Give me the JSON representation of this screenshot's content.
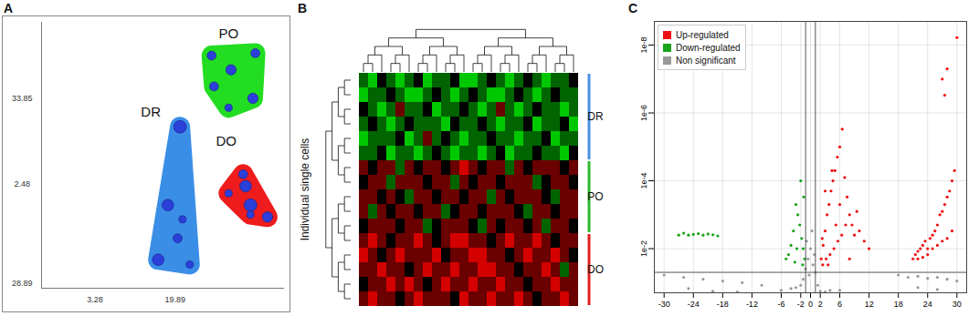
{
  "chart_data": [
    {
      "panel_label": "A",
      "type": "bubble",
      "color": "#2b3fd9",
      "tick_labels": false,
      "xlim": [
        0,
        100
      ],
      "ylim": [
        0,
        112
      ],
      "series": [
        {
          "name": "DR",
          "color": "#3a8ee6",
          "label_x": 45,
          "label_y": 74,
          "x": [
            57,
            52,
            58,
            48,
            61,
            56
          ],
          "y": [
            68,
            35,
            29,
            12,
            10,
            21
          ],
          "sizes": [
            3,
            2.5,
            1,
            2.5,
            1,
            1.5
          ]
        },
        {
          "name": "PO",
          "color": "#22dd22",
          "label_x": 77,
          "label_y": 107,
          "x": [
            70,
            78,
            88,
            87,
            77,
            71
          ],
          "y": [
            98,
            92,
            99,
            80,
            76,
            85
          ],
          "sizes": [
            1.5,
            2,
            1.5,
            2,
            1,
            1.5
          ]
        },
        {
          "name": "DO",
          "color": "#ee1c1c",
          "label_x": 76,
          "label_y": 62,
          "x": [
            83,
            84,
            86,
            93,
            77,
            86
          ],
          "y": [
            48,
            43,
            35,
            30,
            40,
            31
          ],
          "sizes": [
            1.5,
            2.5,
            3,
            2,
            1,
            1
          ]
        }
      ],
      "annotations": [
        {
          "text": "33.85",
          "x": -8,
          "y": 80
        },
        {
          "text": "2.48",
          "x": -8,
          "y": 44
        },
        {
          "text": "28.89",
          "x": -8,
          "y": 2
        },
        {
          "text": "3.28",
          "x": 22,
          "y": -5
        },
        {
          "text": "19.89",
          "x": 55,
          "y": -5
        }
      ]
    },
    {
      "panel_label": "B",
      "type": "heatmap",
      "ylabel": "Individual single cells",
      "tick_labels": false,
      "color_range": [
        -2,
        2
      ],
      "color_scale": [
        "#00c800",
        "#000000",
        "#d40000"
      ],
      "row_groups": [
        {
          "name": "DR",
          "color": "#4a90e2",
          "count": 6
        },
        {
          "name": "PO",
          "color": "#2eb82e",
          "count": 5
        },
        {
          "name": "DO",
          "color": "#e02020",
          "count": 5
        }
      ],
      "cells": [
        [
          -1,
          -2,
          0,
          -1,
          -2,
          -1,
          0,
          -2,
          -1,
          -1,
          0,
          -2,
          -2,
          -1,
          0,
          -1,
          -2,
          -1,
          0,
          -1,
          -2,
          -1,
          -1,
          0
        ],
        [
          -2,
          -1,
          -1,
          0,
          -1,
          -2,
          -2,
          -1,
          0,
          -1,
          -2,
          -1,
          0,
          -1,
          -2,
          -2,
          -1,
          0,
          -1,
          -2,
          -1,
          0,
          -1,
          -1
        ],
        [
          0,
          -1,
          -2,
          -1,
          1,
          -1,
          -1,
          0,
          -2,
          -1,
          -1,
          0,
          -1,
          -2,
          -1,
          1,
          -1,
          -2,
          -1,
          0,
          -1,
          -1,
          -2,
          -1
        ],
        [
          -1,
          0,
          -1,
          -2,
          -1,
          0,
          -1,
          -1,
          -1,
          -2,
          0,
          -1,
          -1,
          0,
          -1,
          -2,
          -1,
          -1,
          0,
          -2,
          -1,
          -1,
          0,
          -2
        ],
        [
          -2,
          -1,
          -1,
          -1,
          0,
          -2,
          -1,
          1,
          -1,
          0,
          -1,
          -2,
          -1,
          -1,
          0,
          -1,
          -1,
          -2,
          -1,
          -1,
          0,
          -2,
          -1,
          -1
        ],
        [
          -1,
          -1,
          0,
          -2,
          -1,
          -1,
          -2,
          -1,
          0,
          -1,
          -2,
          -1,
          -1,
          -2,
          -1,
          0,
          -2,
          -1,
          -1,
          0,
          -1,
          -1,
          -2,
          0
        ],
        [
          1,
          0,
          1,
          1,
          -1,
          1,
          0,
          1,
          1,
          0,
          1,
          2,
          1,
          0,
          1,
          1,
          -1,
          1,
          0,
          1,
          1,
          1,
          0,
          1
        ],
        [
          0,
          1,
          1,
          -1,
          1,
          1,
          1,
          0,
          1,
          1,
          -1,
          1,
          0,
          1,
          1,
          0,
          1,
          1,
          1,
          -1,
          0,
          1,
          1,
          0
        ],
        [
          1,
          1,
          0,
          1,
          0,
          -1,
          1,
          1,
          0,
          1,
          1,
          0,
          1,
          1,
          -1,
          1,
          0,
          1,
          1,
          1,
          0,
          -1,
          1,
          1
        ],
        [
          1,
          -1,
          1,
          0,
          1,
          1,
          0,
          1,
          1,
          -1,
          0,
          1,
          1,
          0,
          1,
          1,
          1,
          0,
          -1,
          1,
          1,
          0,
          1,
          1
        ],
        [
          0,
          1,
          1,
          1,
          0,
          1,
          1,
          -1,
          0,
          1,
          1,
          1,
          0,
          -1,
          1,
          0,
          1,
          1,
          0,
          1,
          -1,
          1,
          1,
          0
        ],
        [
          1,
          2,
          1,
          0,
          1,
          1,
          2,
          1,
          0,
          1,
          2,
          2,
          1,
          1,
          0,
          1,
          2,
          1,
          1,
          2,
          1,
          0,
          1,
          1
        ],
        [
          2,
          1,
          0,
          1,
          2,
          1,
          1,
          1,
          2,
          0,
          1,
          1,
          2,
          2,
          1,
          1,
          0,
          1,
          2,
          1,
          1,
          2,
          1,
          0
        ],
        [
          1,
          1,
          2,
          1,
          1,
          0,
          1,
          2,
          1,
          1,
          2,
          1,
          1,
          2,
          2,
          1,
          1,
          0,
          1,
          1,
          2,
          1,
          -1,
          1
        ],
        [
          0,
          1,
          1,
          2,
          1,
          2,
          1,
          0,
          1,
          2,
          1,
          1,
          2,
          1,
          1,
          2,
          1,
          1,
          0,
          1,
          1,
          2,
          1,
          1
        ],
        [
          1,
          2,
          1,
          1,
          0,
          1,
          2,
          1,
          1,
          1,
          0,
          2,
          1,
          1,
          2,
          1,
          1,
          2,
          1,
          0,
          1,
          1,
          2,
          1
        ]
      ]
    },
    {
      "panel_label": "C",
      "type": "scatter",
      "log": "y",
      "grid": true,
      "legend": "top-left",
      "xlim": [
        -32,
        32
      ],
      "xticks": [
        -30,
        -24,
        -18,
        -12,
        -6,
        -2,
        0,
        2,
        6,
        12,
        18,
        24,
        30
      ],
      "ylim": [
        0.2,
        2e-09
      ],
      "yticks": [
        {
          "value": 0.01,
          "label": "1e-2"
        },
        {
          "value": 0.0001,
          "label": "1e-4"
        },
        {
          "value": 1e-06,
          "label": "1e-6"
        },
        {
          "value": 1e-08,
          "label": "1e-8"
        }
      ],
      "thresholds": {
        "x": [
          -1,
          1
        ],
        "y": 0.05
      },
      "series": [
        {
          "name": "Up-regulated",
          "color": "#ee1111",
          "x": [
            2.2,
            2.6,
            3,
            3.4,
            3.8,
            4.2,
            4.6,
            5,
            5.5,
            6,
            6.5,
            7,
            7.5,
            8,
            8.5,
            9,
            9.5,
            10,
            11,
            12,
            2.5,
            3.2,
            4,
            4.8,
            5.6,
            6.4,
            7.2,
            8,
            3,
            4.4,
            5.2,
            6,
            2.4,
            3.6,
            21,
            21.5,
            22,
            22.5,
            23,
            23.5,
            24,
            24.5,
            25,
            25.5,
            26,
            26.5,
            27,
            27.5,
            28,
            28.5,
            29,
            29.5,
            22,
            23,
            24,
            25,
            26,
            27,
            28,
            29,
            27,
            27.5,
            28,
            30
          ],
          "values": [
            0.02,
            0.008,
            0.003,
            0.001,
            0.0005,
            0.0002,
            0.0001,
            5e-05,
            2e-05,
            1e-05,
            3e-06,
            8e-05,
            0.0003,
            0.001,
            0.002,
            0.004,
            0.0008,
            0.003,
            0.006,
            0.01,
            0.03,
            0.02,
            0.015,
            0.01,
            0.006,
            0.004,
            0.002,
            0.02,
            0.0002,
            5e-05,
            0.002,
            0.0005,
            0.005,
            0.03,
            0.02,
            0.015,
            0.012,
            0.01,
            0.008,
            0.006,
            0.01,
            0.005,
            0.004,
            0.003,
            0.002,
            0.001,
            0.0008,
            0.0005,
            0.0003,
            0.0002,
            0.0001,
            5e-05,
            0.02,
            0.018,
            0.015,
            0.01,
            0.008,
            0.006,
            0.005,
            0.003,
            1e-07,
            3e-07,
            5e-08,
            6e-09
          ]
        },
        {
          "name": "Down-regulated",
          "color": "#19a319",
          "x": [
            -27,
            -26,
            -25,
            -24,
            -23,
            -22,
            -21,
            -20,
            -19,
            -1.2,
            -1.5,
            -1.8,
            -2.2,
            -2.6,
            -3,
            -3.5,
            -4,
            -4.5,
            -5,
            -1.4,
            -2,
            -2.8,
            -1.6,
            -3.2
          ],
          "values": [
            0.004,
            0.0035,
            0.004,
            0.0038,
            0.0036,
            0.004,
            0.0037,
            0.0039,
            0.0042,
            0.02,
            0.01,
            0.005,
            0.002,
            0.001,
            0.0005,
            0.003,
            0.008,
            0.015,
            0.02,
            0.0003,
            0.0001,
            0.01,
            0.03,
            0.025
          ]
        },
        {
          "name": "Non significant",
          "color": "#999999",
          "x": [
            -4,
            -3,
            -2,
            -1.5,
            -1,
            -0.5,
            0,
            0.5,
            1,
            1.5,
            2,
            3,
            4,
            -0.8,
            0.3,
            0.8,
            -0.3,
            -6,
            6,
            -30,
            -26,
            -22,
            -18,
            -14,
            -10,
            18,
            20,
            22,
            24,
            26,
            28,
            30,
            -25,
            -20,
            -15,
            22,
            26
          ],
          "values": [
            0.15,
            0.14,
            0.12,
            0.08,
            0.04,
            0.02,
            0.01,
            0.03,
            0.05,
            0.12,
            0.18,
            0.19,
            0.17,
            0.006,
            0.003,
            0.015,
            0.06,
            0.17,
            0.17,
            0.06,
            0.07,
            0.08,
            0.09,
            0.1,
            0.12,
            0.06,
            0.07,
            0.065,
            0.075,
            0.07,
            0.08,
            0.09,
            0.15,
            0.18,
            0.19,
            0.14,
            0.16
          ]
        }
      ]
    }
  ]
}
